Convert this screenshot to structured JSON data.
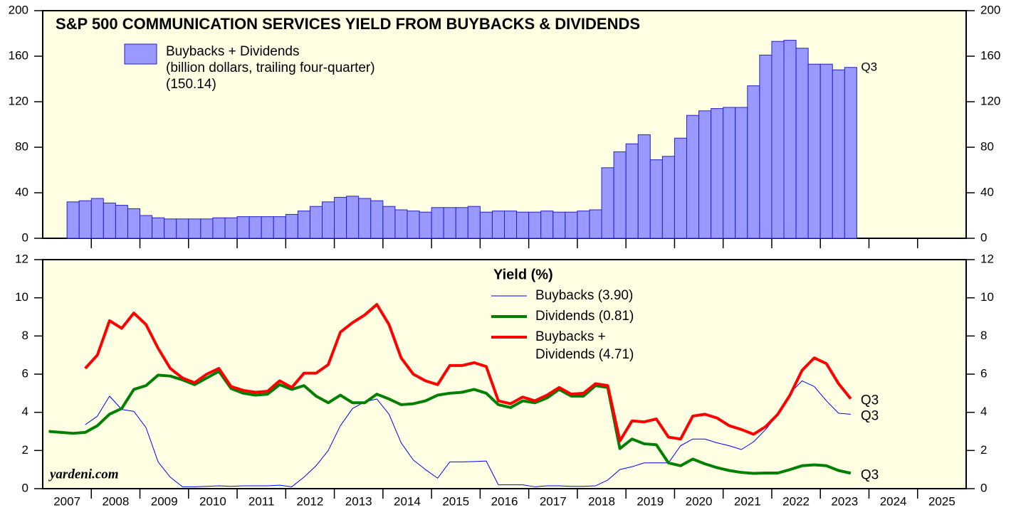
{
  "chart_data": [
    {
      "type": "bar",
      "title": "S&P 500 COMMUNICATION SERVICES YIELD FROM BUYBACKS & DIVIDENDS",
      "legend": [
        "Buybacks + Dividends",
        "(billion dollars, trailing four-quarter)",
        "(150.14)"
      ],
      "color": "#9999ff",
      "edge_color": "#2222cc",
      "end_label": "Q3",
      "end_label_color": "#0000ff",
      "x": [
        2007.625,
        2007.875,
        2008.125,
        2008.375,
        2008.625,
        2008.875,
        2009.125,
        2009.375,
        2009.625,
        2009.875,
        2010.125,
        2010.375,
        2010.625,
        2010.875,
        2011.125,
        2011.375,
        2011.625,
        2011.875,
        2012.125,
        2012.375,
        2012.625,
        2012.875,
        2013.125,
        2013.375,
        2013.625,
        2013.875,
        2014.125,
        2014.375,
        2014.625,
        2014.875,
        2015.125,
        2015.375,
        2015.625,
        2015.875,
        2016.125,
        2016.375,
        2016.625,
        2016.875,
        2017.125,
        2017.375,
        2017.625,
        2017.875,
        2018.125,
        2018.375,
        2018.625,
        2018.875,
        2019.125,
        2019.375,
        2019.625,
        2019.875,
        2020.125,
        2020.375,
        2020.625,
        2020.875,
        2021.125,
        2021.375,
        2021.625,
        2021.875,
        2022.125,
        2022.375,
        2022.625,
        2022.875,
        2023.125,
        2023.375,
        2023.625
      ],
      "values": [
        32,
        33,
        35,
        31,
        29,
        26,
        20,
        18,
        17,
        17,
        17,
        17,
        18,
        18,
        19,
        19,
        19,
        19,
        21,
        24,
        28,
        32,
        36,
        37,
        35,
        33,
        28,
        25,
        24,
        23,
        27,
        27,
        27,
        28,
        23,
        24,
        24,
        23,
        23,
        24,
        23,
        23,
        24,
        25,
        62,
        76,
        83,
        91,
        69,
        72,
        88,
        108,
        112,
        114,
        115,
        115,
        134,
        161,
        173,
        174,
        167,
        153,
        153,
        148,
        150.14
      ],
      "xlim": [
        2007,
        2026
      ],
      "xticks": [
        2008,
        2009,
        2010,
        2011,
        2012,
        2013,
        2014,
        2015,
        2016,
        2017,
        2018,
        2019,
        2020,
        2021,
        2022,
        2023,
        2024,
        2025
      ],
      "ylim": [
        0,
        200
      ],
      "yticks": [
        0,
        40,
        80,
        120,
        160,
        200
      ]
    },
    {
      "type": "line",
      "title": "Yield (%)",
      "watermark": "yardeni.com",
      "x": [
        2007.125,
        2007.375,
        2007.625,
        2007.875,
        2008.125,
        2008.375,
        2008.625,
        2008.875,
        2009.125,
        2009.375,
        2009.625,
        2009.875,
        2010.125,
        2010.375,
        2010.625,
        2010.875,
        2011.125,
        2011.375,
        2011.625,
        2011.875,
        2012.125,
        2012.375,
        2012.625,
        2012.875,
        2013.125,
        2013.375,
        2013.625,
        2013.875,
        2014.125,
        2014.375,
        2014.625,
        2014.875,
        2015.125,
        2015.375,
        2015.625,
        2015.875,
        2016.125,
        2016.375,
        2016.625,
        2016.875,
        2017.125,
        2017.375,
        2017.625,
        2017.875,
        2018.125,
        2018.375,
        2018.625,
        2018.875,
        2019.125,
        2019.375,
        2019.625,
        2019.875,
        2020.125,
        2020.375,
        2020.625,
        2020.875,
        2021.125,
        2021.375,
        2021.625,
        2021.875,
        2022.125,
        2022.375,
        2022.625,
        2022.875,
        2023.125,
        2023.375,
        2023.625
      ],
      "series": [
        {
          "name": "Buybacks (3.90)",
          "color": "#0000ff",
          "width": 1,
          "end_label": "Q3",
          "values": [
            null,
            null,
            null,
            3.35,
            3.8,
            4.85,
            4.15,
            4.05,
            3.2,
            1.4,
            0.6,
            0.1,
            0.1,
            0.12,
            0.15,
            0.12,
            0.15,
            0.15,
            0.15,
            0.18,
            0.1,
            0.6,
            1.2,
            2.0,
            3.3,
            4.2,
            4.55,
            4.7,
            3.9,
            2.4,
            1.5,
            1.0,
            0.55,
            1.4,
            1.4,
            1.42,
            1.45,
            0.2,
            0.2,
            0.2,
            0.1,
            0.15,
            0.15,
            0.12,
            0.12,
            0.15,
            0.45,
            1.0,
            1.15,
            1.35,
            1.35,
            1.35,
            2.25,
            2.6,
            2.6,
            2.4,
            2.25,
            2.05,
            2.45,
            3.1,
            3.9,
            5.0,
            5.65,
            5.35,
            4.6,
            3.95,
            3.9
          ]
        },
        {
          "name": "Dividends (0.81)",
          "color": "#008000",
          "width": 4,
          "end_label": "Q3",
          "values": [
            3.0,
            2.95,
            2.9,
            2.95,
            3.3,
            3.9,
            4.2,
            5.2,
            5.4,
            5.95,
            5.9,
            5.7,
            5.45,
            5.8,
            6.15,
            5.25,
            5.0,
            4.9,
            4.95,
            5.45,
            5.2,
            5.4,
            4.85,
            4.5,
            4.9,
            4.5,
            4.5,
            4.95,
            4.7,
            4.4,
            4.45,
            4.6,
            4.9,
            5.0,
            5.05,
            5.2,
            5.0,
            4.4,
            4.25,
            4.6,
            4.5,
            4.75,
            5.2,
            4.85,
            4.85,
            5.4,
            5.3,
            2.1,
            2.6,
            2.35,
            2.3,
            1.35,
            1.2,
            1.55,
            1.3,
            1.1,
            0.95,
            0.85,
            0.8,
            0.82,
            0.82,
            1.0,
            1.2,
            1.25,
            1.2,
            0.95,
            0.81
          ]
        },
        {
          "name": [
            "Buybacks +",
            "Dividends (4.71)"
          ],
          "color": "#ff0000",
          "width": 4,
          "end_label": "Q3",
          "values": [
            null,
            null,
            null,
            6.3,
            7.0,
            8.8,
            8.4,
            9.2,
            8.6,
            7.35,
            6.3,
            5.8,
            5.55,
            6.0,
            6.3,
            5.35,
            5.15,
            5.05,
            5.1,
            5.65,
            5.3,
            6.05,
            6.05,
            6.5,
            8.2,
            8.7,
            9.1,
            9.65,
            8.6,
            6.85,
            6.0,
            5.65,
            5.45,
            6.45,
            6.45,
            6.6,
            6.4,
            4.6,
            4.45,
            4.8,
            4.6,
            4.9,
            5.3,
            4.95,
            5.0,
            5.5,
            5.4,
            2.5,
            3.55,
            3.5,
            3.65,
            2.7,
            2.6,
            3.8,
            3.9,
            3.7,
            3.3,
            3.1,
            2.85,
            3.25,
            3.9,
            4.9,
            6.2,
            6.85,
            6.55,
            5.5,
            4.71
          ]
        }
      ],
      "xlim": [
        2007,
        2026
      ],
      "xticks": [
        2008,
        2009,
        2010,
        2011,
        2012,
        2013,
        2014,
        2015,
        2016,
        2017,
        2018,
        2019,
        2020,
        2021,
        2022,
        2023,
        2024,
        2025
      ],
      "year_labels": [
        {
          "value": 2007.5,
          "label": "2007"
        },
        {
          "value": 2008.5,
          "label": "2008"
        },
        {
          "value": 2009.5,
          "label": "2009"
        },
        {
          "value": 2010.5,
          "label": "2010"
        },
        {
          "value": 2011.5,
          "label": "2011"
        },
        {
          "value": 2012.5,
          "label": "2012"
        },
        {
          "value": 2013.5,
          "label": "2013"
        },
        {
          "value": 2014.5,
          "label": "2014"
        },
        {
          "value": 2015.5,
          "label": "2015"
        },
        {
          "value": 2016.5,
          "label": "2016"
        },
        {
          "value": 2017.5,
          "label": "2017"
        },
        {
          "value": 2018.5,
          "label": "2018"
        },
        {
          "value": 2019.5,
          "label": "2019"
        },
        {
          "value": 2020.5,
          "label": "2020"
        },
        {
          "value": 2021.5,
          "label": "2021"
        },
        {
          "value": 2022.5,
          "label": "2022"
        },
        {
          "value": 2023.5,
          "label": "2023"
        },
        {
          "value": 2024.5,
          "label": "2024"
        },
        {
          "value": 2025.5,
          "label": "2025"
        }
      ],
      "ylim": [
        0,
        12
      ],
      "yticks": [
        0,
        2,
        4,
        6,
        8,
        10,
        12
      ]
    }
  ]
}
